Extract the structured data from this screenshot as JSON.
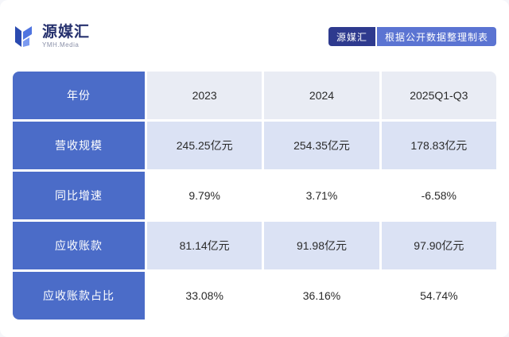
{
  "logo": {
    "name": "源媒汇",
    "subtitle": "YMH.Media"
  },
  "badge": {
    "source": "源媒汇",
    "note": "根据公开数据整理制表"
  },
  "chart_data": {
    "type": "table",
    "columns": [
      "年份",
      "2023",
      "2024",
      "2025Q1-Q3"
    ],
    "rows": [
      {
        "label": "营收规模",
        "values": [
          "245.25亿元",
          "254.35亿元",
          "178.83亿元"
        ]
      },
      {
        "label": "同比增速",
        "values": [
          "9.79%",
          "3.71%",
          "-6.58%"
        ]
      },
      {
        "label": "应收账款",
        "values": [
          "81.14亿元",
          "91.98亿元",
          "97.90亿元"
        ]
      },
      {
        "label": "应收账款占比",
        "values": [
          "33.08%",
          "36.16%",
          "54.74%"
        ]
      }
    ]
  },
  "colors": {
    "header_blue": "#4b6cc8",
    "row_lavender": "#dbe2f4",
    "row_white": "#ffffff",
    "header_light": "#e9ecf4",
    "badge_dark": "#2e3a8e",
    "badge_light": "#5b74d2"
  }
}
